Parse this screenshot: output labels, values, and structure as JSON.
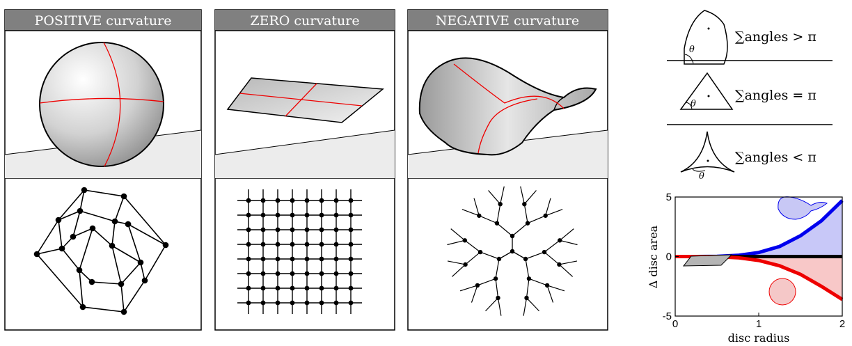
{
  "panels": [
    {
      "header": "POSITIVE curvature"
    },
    {
      "header": "ZERO curvature"
    },
    {
      "header": "NEGATIVE curvature"
    }
  ],
  "triangles": [
    {
      "label": "∑angles > π",
      "theta": "θ"
    },
    {
      "label": "∑angles = π",
      "theta": "θ"
    },
    {
      "label": "∑angles < π",
      "theta": "θ"
    }
  ],
  "chart_data": {
    "type": "line",
    "xlabel": "disc radius",
    "ylabel": "Δ disc area",
    "xlim": [
      0,
      2
    ],
    "ylim": [
      -5,
      5
    ],
    "xticks": [
      "0",
      "1",
      "2"
    ],
    "yticks": [
      "5",
      "0",
      "-5"
    ],
    "grid": false,
    "series": [
      {
        "curvature": "negative",
        "color": "#0000ee",
        "fill": "#c8c8f8",
        "x": [
          0,
          0.25,
          0.5,
          0.75,
          1.0,
          1.25,
          1.5,
          1.75,
          2.0
        ],
        "y": [
          0,
          0.0,
          0.02,
          0.1,
          0.34,
          0.85,
          1.75,
          3.0,
          4.7
        ]
      },
      {
        "curvature": "zero",
        "color": "#000000",
        "x": [
          0,
          2
        ],
        "y": [
          0,
          0
        ]
      },
      {
        "curvature": "positive",
        "color": "#ee0000",
        "fill": "#f8c8c8",
        "x": [
          0,
          0.25,
          0.5,
          0.75,
          1.0,
          1.25,
          1.5,
          1.75,
          2.0
        ],
        "y": [
          0,
          0.0,
          -0.02,
          -0.1,
          -0.33,
          -0.78,
          -1.5,
          -2.5,
          -3.6
        ]
      }
    ]
  }
}
